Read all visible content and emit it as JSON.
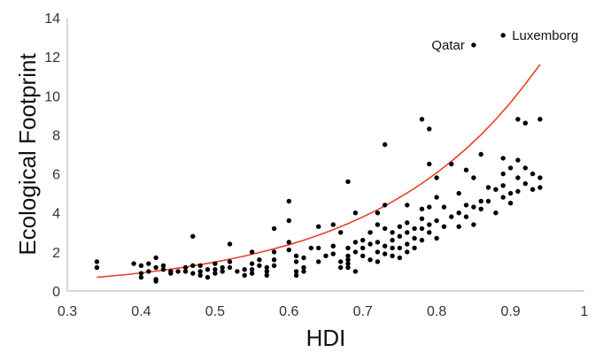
{
  "chart_data": {
    "type": "scatter",
    "title": "",
    "xlabel": "HDI",
    "ylabel": "Ecological Footprint",
    "xlim": [
      0.3,
      1.0
    ],
    "ylim": [
      0,
      14
    ],
    "xticks": [
      "0.3",
      "0.4",
      "0.5",
      "0.6",
      "0.7",
      "0.8",
      "0.9",
      "1"
    ],
    "yticks": [
      "0",
      "2",
      "4",
      "6",
      "8",
      "10",
      "12",
      "14"
    ],
    "grid": false,
    "legend": "none",
    "point_color": "#000000",
    "trend_color": "#e8402a",
    "trendline": {
      "type": "exponential",
      "x": [
        0.34,
        0.36,
        0.38,
        0.4,
        0.42,
        0.44,
        0.46,
        0.48,
        0.5,
        0.52,
        0.54,
        0.56,
        0.58,
        0.6,
        0.62,
        0.64,
        0.66,
        0.68,
        0.7,
        0.72,
        0.74,
        0.76,
        0.78,
        0.8,
        0.82,
        0.84,
        0.86,
        0.88,
        0.9,
        0.92,
        0.94
      ],
      "y": [
        0.7,
        0.77,
        0.84,
        0.93,
        1.02,
        1.12,
        1.23,
        1.35,
        1.48,
        1.63,
        1.79,
        1.97,
        2.16,
        2.37,
        2.6,
        2.86,
        3.14,
        3.45,
        3.79,
        4.16,
        4.57,
        5.02,
        5.51,
        6.05,
        6.64,
        7.29,
        8.0,
        8.79,
        9.65,
        10.6,
        11.6
      ]
    },
    "annotations": [
      {
        "text": "Qatar",
        "x": 0.85,
        "y": 12.6
      },
      {
        "text": "Luxemborg",
        "x": 0.89,
        "y": 13.1
      }
    ],
    "series": [
      {
        "points": [
          [
            0.34,
            1.5
          ],
          [
            0.34,
            1.2
          ],
          [
            0.39,
            1.4
          ],
          [
            0.4,
            1.3
          ],
          [
            0.4,
            0.9
          ],
          [
            0.4,
            0.7
          ],
          [
            0.41,
            1.4
          ],
          [
            0.41,
            1.0
          ],
          [
            0.42,
            1.7
          ],
          [
            0.42,
            1.2
          ],
          [
            0.42,
            0.6
          ],
          [
            0.42,
            0.5
          ],
          [
            0.43,
            1.3
          ],
          [
            0.43,
            1.1
          ],
          [
            0.44,
            1.0
          ],
          [
            0.44,
            0.9
          ],
          [
            0.45,
            1.0
          ],
          [
            0.46,
            1.2
          ],
          [
            0.46,
            1.0
          ],
          [
            0.47,
            2.8
          ],
          [
            0.47,
            1.3
          ],
          [
            0.47,
            0.9
          ],
          [
            0.48,
            1.3
          ],
          [
            0.48,
            1.0
          ],
          [
            0.48,
            0.8
          ],
          [
            0.49,
            1.1
          ],
          [
            0.49,
            0.7
          ],
          [
            0.5,
            1.4
          ],
          [
            0.5,
            1.1
          ],
          [
            0.5,
            0.9
          ],
          [
            0.51,
            1.2
          ],
          [
            0.51,
            1.0
          ],
          [
            0.52,
            2.4
          ],
          [
            0.52,
            1.5
          ],
          [
            0.52,
            1.2
          ],
          [
            0.53,
            1.0
          ],
          [
            0.54,
            1.1
          ],
          [
            0.54,
            0.8
          ],
          [
            0.55,
            2.0
          ],
          [
            0.55,
            1.4
          ],
          [
            0.55,
            1.1
          ],
          [
            0.55,
            0.9
          ],
          [
            0.56,
            1.6
          ],
          [
            0.56,
            1.3
          ],
          [
            0.57,
            1.2
          ],
          [
            0.57,
            1.0
          ],
          [
            0.57,
            0.8
          ],
          [
            0.58,
            3.2
          ],
          [
            0.58,
            2.0
          ],
          [
            0.58,
            1.6
          ],
          [
            0.58,
            1.3
          ],
          [
            0.6,
            4.6
          ],
          [
            0.6,
            3.6
          ],
          [
            0.6,
            2.5
          ],
          [
            0.6,
            2.1
          ],
          [
            0.61,
            1.8
          ],
          [
            0.61,
            1.5
          ],
          [
            0.61,
            1.0
          ],
          [
            0.61,
            0.8
          ],
          [
            0.62,
            1.7
          ],
          [
            0.62,
            1.2
          ],
          [
            0.62,
            1.0
          ],
          [
            0.63,
            2.2
          ],
          [
            0.64,
            3.3
          ],
          [
            0.64,
            2.2
          ],
          [
            0.64,
            1.5
          ],
          [
            0.65,
            1.8
          ],
          [
            0.66,
            3.4
          ],
          [
            0.66,
            2.3
          ],
          [
            0.66,
            1.9
          ],
          [
            0.67,
            3.0
          ],
          [
            0.67,
            1.5
          ],
          [
            0.67,
            1.2
          ],
          [
            0.68,
            5.6
          ],
          [
            0.68,
            2.2
          ],
          [
            0.68,
            1.8
          ],
          [
            0.68,
            1.6
          ],
          [
            0.68,
            1.4
          ],
          [
            0.68,
            1.2
          ],
          [
            0.69,
            4.0
          ],
          [
            0.69,
            2.5
          ],
          [
            0.69,
            2.0
          ],
          [
            0.69,
            1.0
          ],
          [
            0.7,
            2.6
          ],
          [
            0.7,
            2.2
          ],
          [
            0.7,
            1.8
          ],
          [
            0.71,
            3.0
          ],
          [
            0.71,
            2.4
          ],
          [
            0.71,
            1.6
          ],
          [
            0.72,
            4.0
          ],
          [
            0.72,
            3.4
          ],
          [
            0.72,
            2.5
          ],
          [
            0.72,
            2.0
          ],
          [
            0.72,
            1.5
          ],
          [
            0.73,
            7.5
          ],
          [
            0.73,
            4.4
          ],
          [
            0.73,
            3.2
          ],
          [
            0.73,
            2.3
          ],
          [
            0.73,
            1.9
          ],
          [
            0.74,
            3.0
          ],
          [
            0.74,
            2.6
          ],
          [
            0.74,
            2.2
          ],
          [
            0.74,
            1.8
          ],
          [
            0.75,
            3.3
          ],
          [
            0.75,
            2.8
          ],
          [
            0.75,
            2.2
          ],
          [
            0.75,
            1.7
          ],
          [
            0.76,
            4.4
          ],
          [
            0.76,
            3.5
          ],
          [
            0.76,
            3.0
          ],
          [
            0.76,
            2.4
          ],
          [
            0.76,
            2.0
          ],
          [
            0.77,
            3.2
          ],
          [
            0.77,
            2.7
          ],
          [
            0.77,
            2.2
          ],
          [
            0.78,
            8.8
          ],
          [
            0.78,
            4.2
          ],
          [
            0.78,
            3.7
          ],
          [
            0.78,
            3.2
          ],
          [
            0.78,
            2.6
          ],
          [
            0.79,
            8.3
          ],
          [
            0.79,
            6.5
          ],
          [
            0.79,
            4.3
          ],
          [
            0.79,
            3.4
          ],
          [
            0.79,
            3.0
          ],
          [
            0.8,
            5.8
          ],
          [
            0.8,
            4.8
          ],
          [
            0.8,
            3.6
          ],
          [
            0.8,
            2.7
          ],
          [
            0.81,
            4.3
          ],
          [
            0.81,
            3.3
          ],
          [
            0.82,
            6.5
          ],
          [
            0.82,
            3.8
          ],
          [
            0.83,
            5.0
          ],
          [
            0.83,
            4.0
          ],
          [
            0.83,
            3.3
          ],
          [
            0.84,
            6.2
          ],
          [
            0.84,
            4.4
          ],
          [
            0.84,
            3.8
          ],
          [
            0.85,
            12.6
          ],
          [
            0.85,
            5.8
          ],
          [
            0.85,
            4.3
          ],
          [
            0.85,
            3.4
          ],
          [
            0.86,
            7.0
          ],
          [
            0.86,
            4.6
          ],
          [
            0.86,
            4.2
          ],
          [
            0.87,
            5.3
          ],
          [
            0.87,
            4.6
          ],
          [
            0.88,
            4.0
          ],
          [
            0.88,
            5.2
          ],
          [
            0.89,
            13.1
          ],
          [
            0.89,
            6.8
          ],
          [
            0.89,
            6.0
          ],
          [
            0.89,
            5.4
          ],
          [
            0.89,
            4.8
          ],
          [
            0.9,
            6.3
          ],
          [
            0.9,
            5.0
          ],
          [
            0.9,
            4.5
          ],
          [
            0.91,
            8.8
          ],
          [
            0.91,
            6.7
          ],
          [
            0.91,
            5.8
          ],
          [
            0.91,
            5.1
          ],
          [
            0.92,
            8.6
          ],
          [
            0.92,
            6.3
          ],
          [
            0.92,
            5.5
          ],
          [
            0.93,
            6.0
          ],
          [
            0.93,
            5.2
          ],
          [
            0.94,
            8.8
          ],
          [
            0.94,
            5.8
          ],
          [
            0.94,
            5.3
          ]
        ]
      }
    ]
  }
}
